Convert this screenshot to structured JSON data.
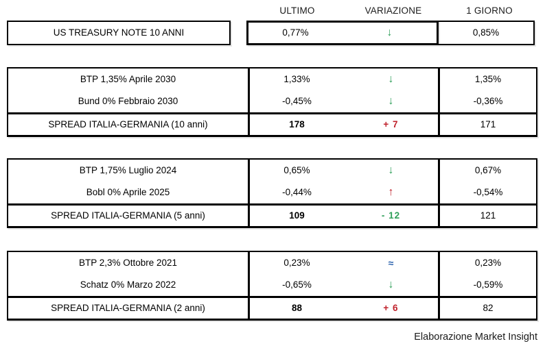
{
  "colors": {
    "green": "#2e9e58",
    "red": "#c0222c",
    "blue": "#2c63ad",
    "border": "#000000"
  },
  "header": {
    "columns": [
      "ULTIMO",
      "VARIAZIONE",
      "1 GIORNO"
    ]
  },
  "tables": [
    {
      "name": "us-treasury",
      "rows": [
        {
          "label": "US TREASURY NOTE 10 ANNI",
          "ultimo": "0,77%",
          "variazione": {
            "symbol": "↓",
            "direction": "down",
            "color": "green"
          },
          "giorno": "0,85%"
        }
      ]
    },
    {
      "name": "spread-10-anni",
      "rows": [
        {
          "label": "BTP 1,35% Aprile 2030",
          "ultimo": "1,33%",
          "variazione": {
            "symbol": "↓",
            "direction": "down",
            "color": "green"
          },
          "giorno": "1,35%"
        },
        {
          "label": "Bund 0% Febbraio 2030",
          "ultimo": "-0,45%",
          "variazione": {
            "symbol": "↓",
            "direction": "down",
            "color": "green"
          },
          "giorno": "-0,36%"
        },
        {
          "label": "SPREAD ITALIA-GERMANIA (10 anni)",
          "ultimo": "178",
          "variazione": {
            "symbol": "+ 7",
            "direction": "up",
            "color": "red"
          },
          "giorno": "171",
          "spread": true
        }
      ]
    },
    {
      "name": "spread-5-anni",
      "rows": [
        {
          "label": "BTP 1,75% Luglio 2024",
          "ultimo": "0,65%",
          "variazione": {
            "symbol": "↓",
            "direction": "down",
            "color": "green"
          },
          "giorno": "0,67%"
        },
        {
          "label": "Bobl 0% Aprile 2025",
          "ultimo": "-0,44%",
          "variazione": {
            "symbol": "↑",
            "direction": "up",
            "color": "red"
          },
          "giorno": "-0,54%"
        },
        {
          "label": "SPREAD ITALIA-GERMANIA (5 anni)",
          "ultimo": "109",
          "variazione": {
            "symbol": "- 12",
            "direction": "down",
            "color": "green"
          },
          "giorno": "121",
          "spread": true
        }
      ]
    },
    {
      "name": "spread-2-anni",
      "rows": [
        {
          "label": "BTP 2,3% Ottobre 2021",
          "ultimo": "0,23%",
          "variazione": {
            "symbol": "≈",
            "direction": "flat",
            "color": "blue"
          },
          "giorno": "0,23%"
        },
        {
          "label": "Schatz 0% Marzo 2022",
          "ultimo": "-0,65%",
          "variazione": {
            "symbol": "↓",
            "direction": "down",
            "color": "green"
          },
          "giorno": "-0,59%"
        },
        {
          "label": "SPREAD ITALIA-GERMANIA (2 anni)",
          "ultimo": "88",
          "variazione": {
            "symbol": "+ 6",
            "direction": "up",
            "color": "red"
          },
          "giorno": "82",
          "spread": true
        }
      ]
    }
  ],
  "footer": {
    "credit": "Elaborazione Market Insight"
  }
}
